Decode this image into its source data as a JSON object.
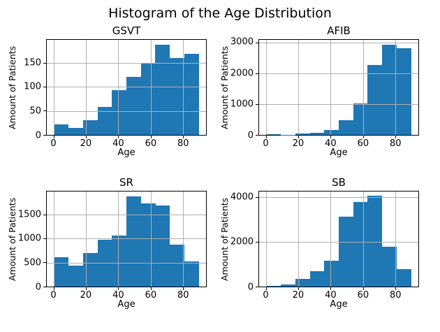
{
  "figure": {
    "title": "Histogram of the Age Distribution"
  },
  "chart_data": [
    {
      "type": "bar",
      "title": "GSVT",
      "xlabel": "Age",
      "ylabel": "Amount of Patients",
      "bin_edges": [
        0,
        9,
        18,
        27,
        36,
        45,
        54,
        63,
        72,
        81,
        90
      ],
      "values": [
        22,
        15,
        31,
        59,
        94,
        121,
        150,
        189,
        161,
        170
      ],
      "xticks": [
        0,
        20,
        40,
        60,
        80
      ],
      "yticks": [
        0,
        50,
        100,
        150
      ],
      "xlim": [
        -4.5,
        94.5
      ],
      "ylim": [
        0,
        198.5
      ],
      "grid": true,
      "legend": "none",
      "bar_color": "#1f77b4"
    },
    {
      "type": "bar",
      "title": "AFIB",
      "xlabel": "Age",
      "ylabel": "Amount of Patients",
      "bin_edges": [
        0,
        9,
        18,
        27,
        36,
        45,
        54,
        63,
        72,
        81,
        90
      ],
      "values": [
        30,
        10,
        35,
        60,
        150,
        480,
        1030,
        2280,
        2950,
        2820
      ],
      "xticks": [
        0,
        20,
        40,
        60,
        80
      ],
      "yticks": [
        0,
        1000,
        2000,
        3000
      ],
      "xlim": [
        -4.5,
        94.5
      ],
      "ylim": [
        0,
        3098
      ],
      "grid": true,
      "legend": "none",
      "bar_color": "#1f77b4"
    },
    {
      "type": "bar",
      "title": "SR",
      "xlabel": "Age",
      "ylabel": "Amount of Patients",
      "bin_edges": [
        0,
        9,
        18,
        27,
        36,
        45,
        54,
        63,
        72,
        81,
        90
      ],
      "values": [
        610,
        440,
        700,
        980,
        1070,
        1890,
        1740,
        1700,
        870,
        520
      ],
      "xticks": [
        0,
        20,
        40,
        60,
        80
      ],
      "yticks": [
        0,
        500,
        1000,
        1500
      ],
      "xlim": [
        -4.5,
        94.5
      ],
      "ylim": [
        0,
        1985
      ],
      "grid": true,
      "legend": "none",
      "bar_color": "#1f77b4"
    },
    {
      "type": "bar",
      "title": "SB",
      "xlabel": "Age",
      "ylabel": "Amount of Patients",
      "bin_edges": [
        0,
        9,
        18,
        27,
        36,
        45,
        54,
        63,
        72,
        81,
        90
      ],
      "values": [
        30,
        80,
        330,
        680,
        1150,
        3150,
        3800,
        4060,
        1800,
        780
      ],
      "xticks": [
        0,
        20,
        40,
        60,
        80
      ],
      "yticks": [
        0,
        2000,
        4000
      ],
      "xlim": [
        -4.5,
        94.5
      ],
      "ylim": [
        0,
        4263
      ],
      "grid": true,
      "legend": "none",
      "bar_color": "#1f77b4"
    }
  ]
}
